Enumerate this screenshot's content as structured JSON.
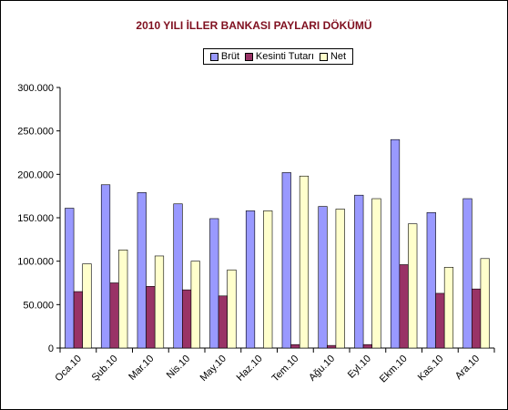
{
  "chart_data": {
    "type": "bar",
    "title": "2010 YILI İLLER BANKASI PAYLARI DÖKÜMÜ",
    "categories": [
      "Oca.10",
      "Şub.10",
      "Mar.10",
      "Nis.10",
      "May.10",
      "Haz.10",
      "Tem.10",
      "Ağu.10",
      "Eyl.10",
      "Ekm.10",
      "Kas.10",
      "Ara.10"
    ],
    "series": [
      {
        "name": "Brüt",
        "color": "#9999ff",
        "values": [
          161000,
          188000,
          179000,
          166000,
          149000,
          158000,
          202000,
          163000,
          176000,
          240000,
          156000,
          172000
        ]
      },
      {
        "name": "Kesinti Tutarı",
        "color": "#993366",
        "values": [
          65000,
          75000,
          71000,
          67000,
          60000,
          0,
          4000,
          3000,
          4000,
          96000,
          63000,
          68000
        ]
      },
      {
        "name": "Net",
        "color": "#ffffcc",
        "values": [
          97000,
          113000,
          106000,
          100000,
          90000,
          158000,
          198000,
          160000,
          172000,
          143000,
          93000,
          103000
        ]
      }
    ],
    "ylim": [
      0,
      300000
    ],
    "yticks": [
      0,
      50000,
      100000,
      150000,
      200000,
      250000,
      300000
    ],
    "ytick_labels": [
      "0",
      "50.000",
      "100.000",
      "150.000",
      "200.000",
      "250.000",
      "300.000"
    ],
    "legend_position": "top-center",
    "grid": false
  }
}
